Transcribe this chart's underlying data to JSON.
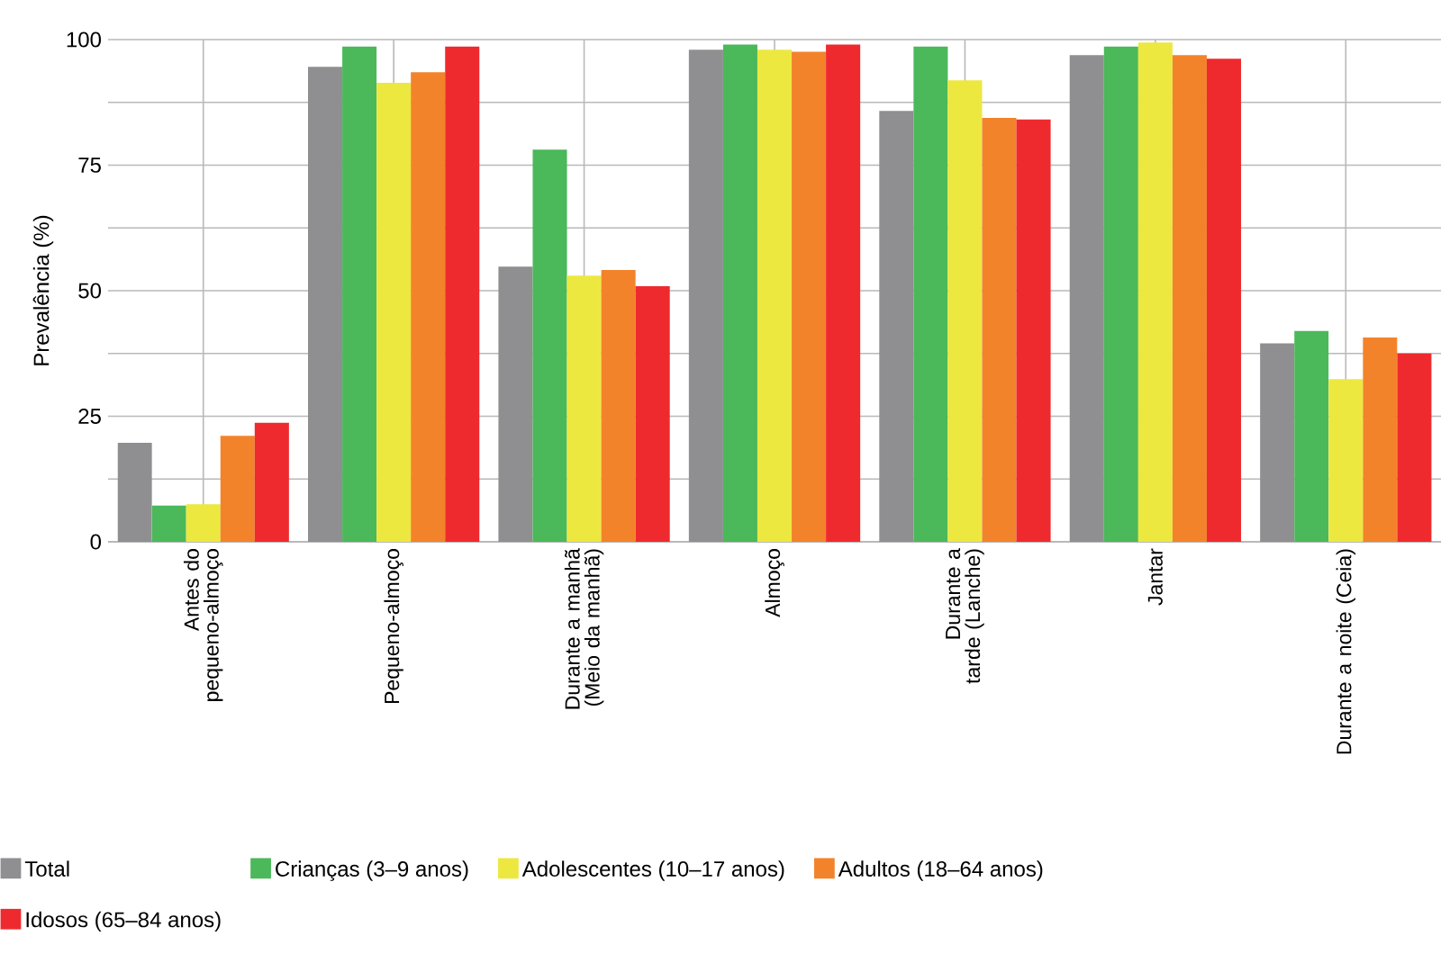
{
  "chart_data": {
    "type": "bar",
    "ylabel": "Prevalência (%)",
    "categories": [
      "Antes do pequeno-almoço",
      "Pequeno-almoço",
      "Durante a manhã (Meio da manhã)",
      "Almoço",
      "Durante a tarde (Lanche)",
      "Jantar",
      "Durante a noite (Ceia)"
    ],
    "series": [
      {
        "name": "Total",
        "color": "#8f8f91",
        "values": [
          19.7,
          94.6,
          54.8,
          98,
          85.8,
          96.9,
          39.5
        ]
      },
      {
        "name": "Crianças (3–9 anos)",
        "color": "#4bb85a",
        "values": [
          7.2,
          98.6,
          78.1,
          99,
          98.6,
          98.6,
          42
        ]
      },
      {
        "name": "Adolescentes (10–17 anos)",
        "color": "#ece840",
        "values": [
          7.5,
          91.4,
          53,
          98,
          91.9,
          99.4,
          32.4
        ]
      },
      {
        "name": "Adultos (18–64 anos)",
        "color": "#f3832a",
        "values": [
          21.1,
          93.5,
          54.1,
          97.6,
          84.4,
          96.9,
          40.7
        ]
      },
      {
        "name": "Idosos (65–84 anos)",
        "color": "#ef2a2e",
        "values": [
          23.7,
          98.6,
          50.9,
          99,
          84.1,
          96.2,
          37.5
        ]
      }
    ],
    "ylim": [
      0,
      100
    ],
    "yticks": [
      0,
      {
        "value": 12.5,
        "label": null
      },
      25,
      {
        "value": 37.5,
        "label": null
      },
      50,
      {
        "value": 62.5,
        "label": null
      },
      75,
      {
        "value": 87.5,
        "label": null
      },
      100
    ],
    "grid": true,
    "legend": "bottom"
  }
}
